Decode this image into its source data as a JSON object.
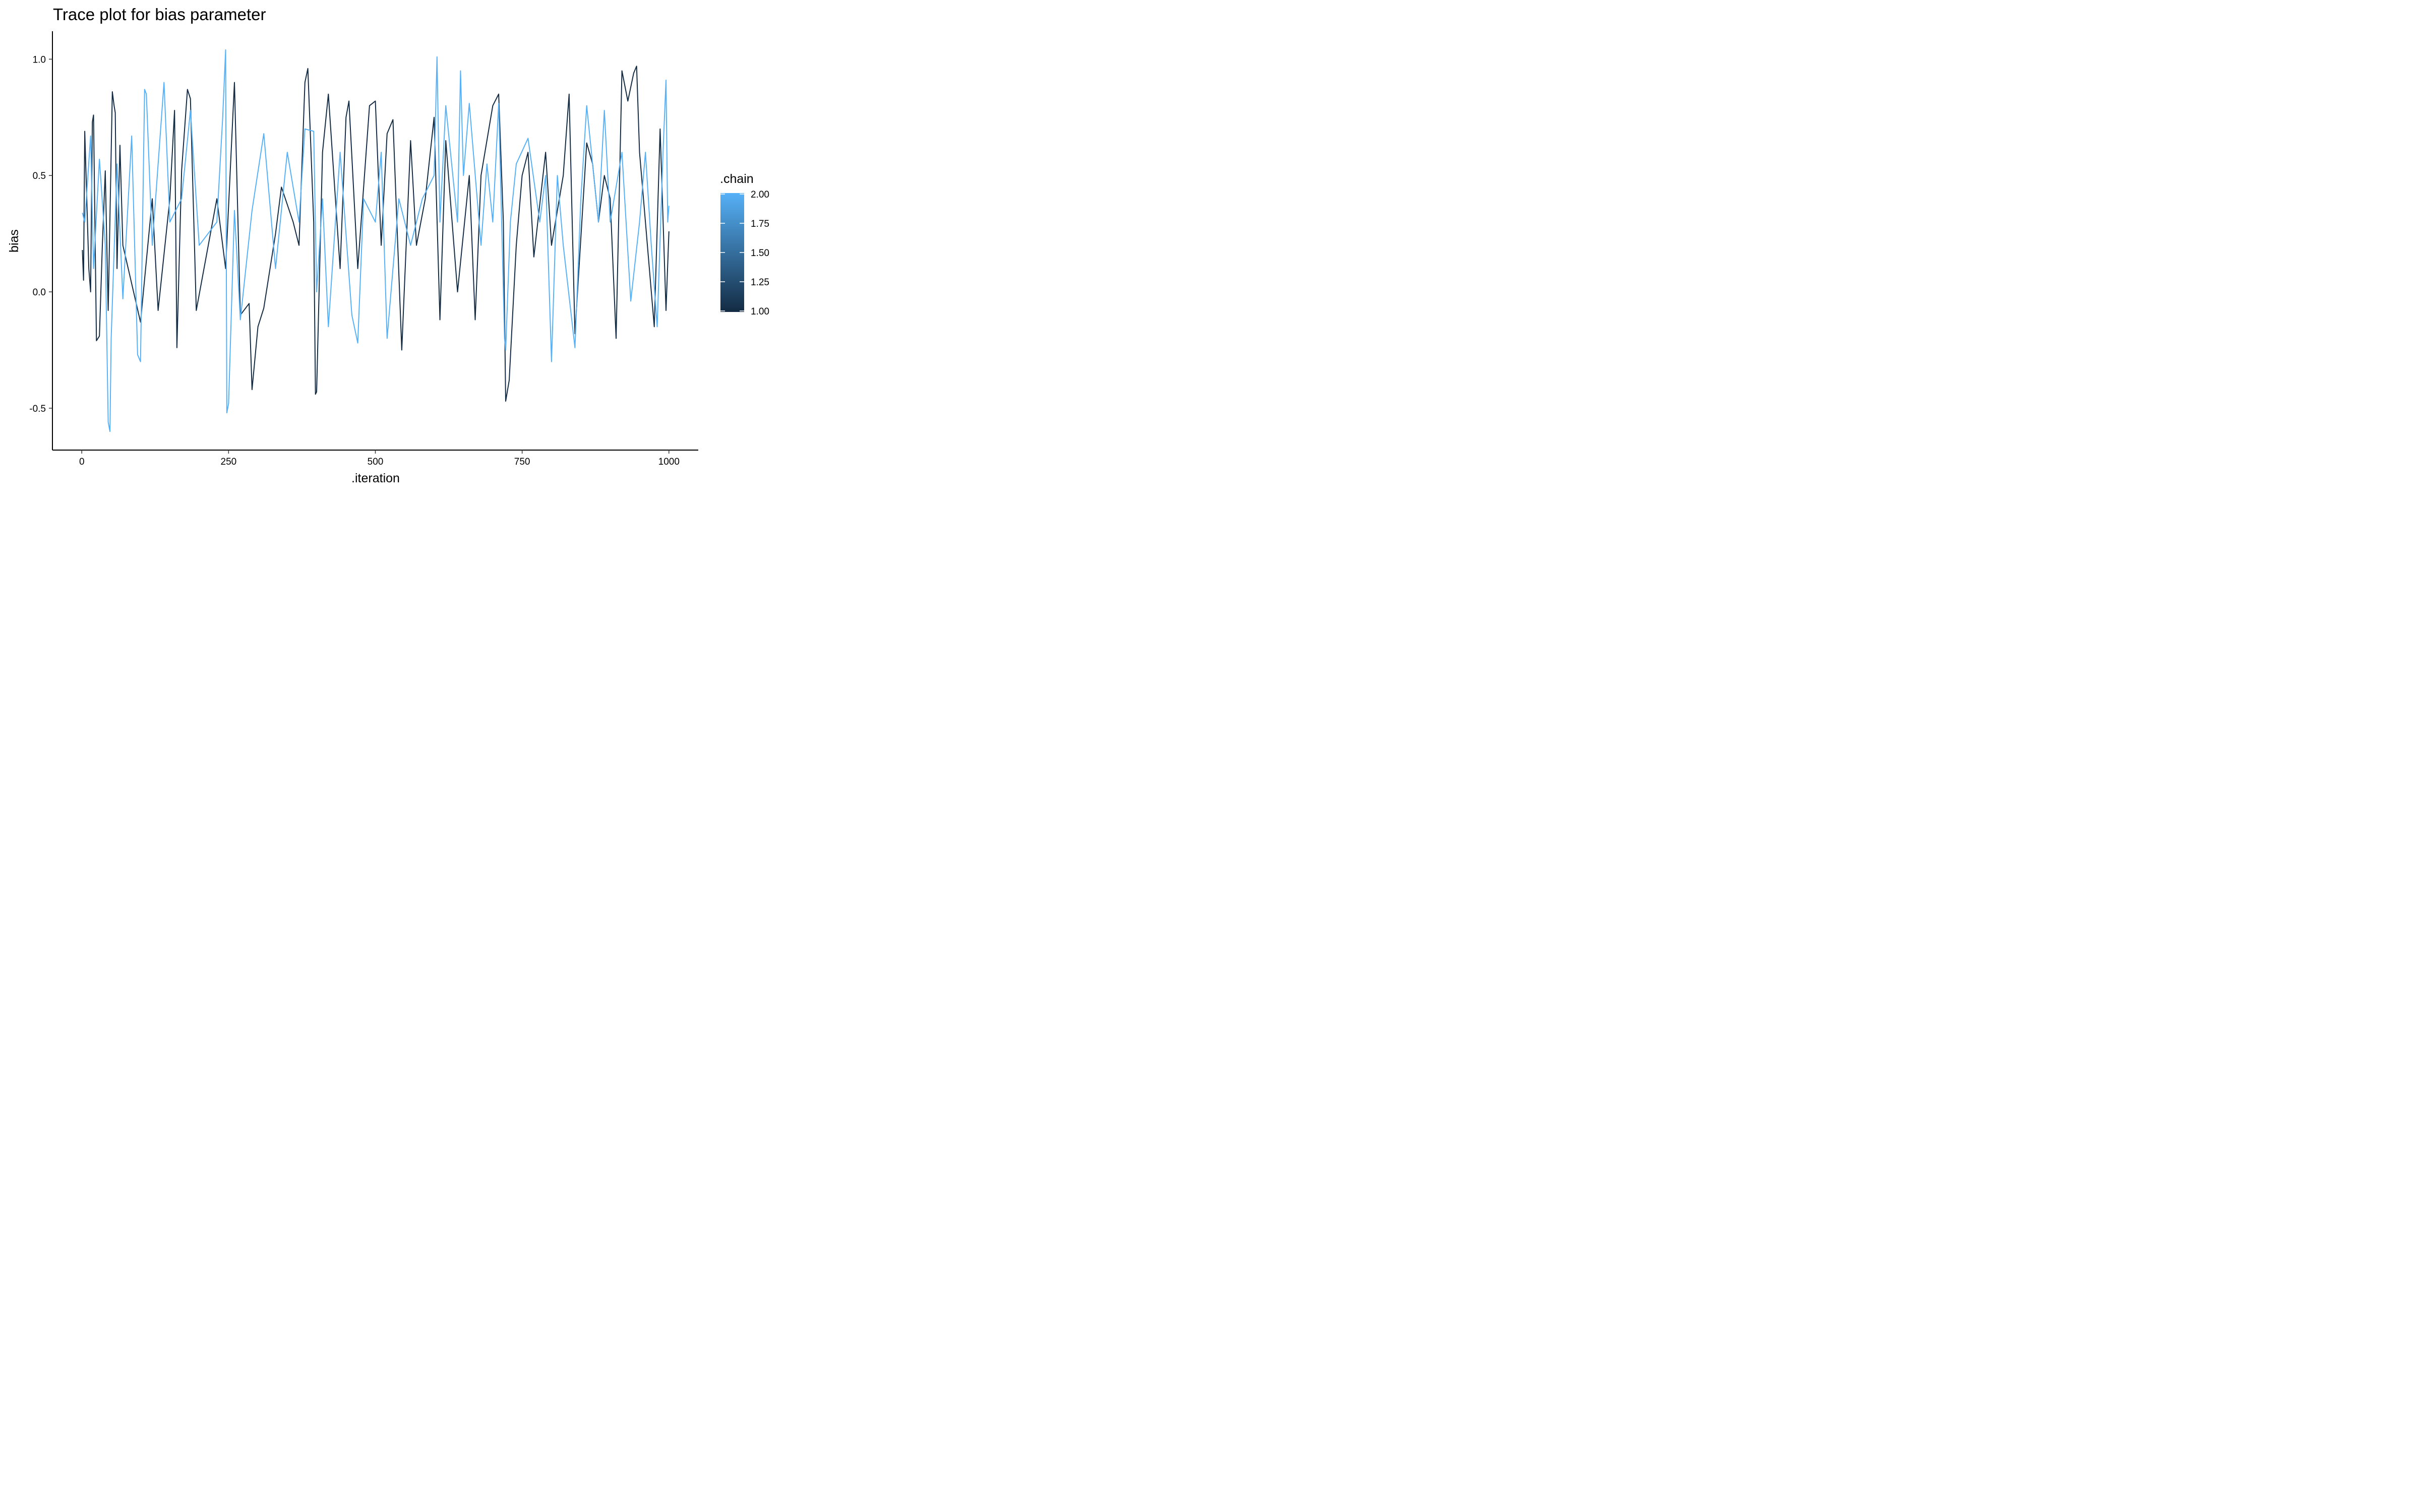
{
  "chart_data": {
    "type": "line",
    "title": "Trace plot for bias parameter",
    "xlabel": ".iteration",
    "ylabel": "bias",
    "xlim": [
      -50,
      1050
    ],
    "ylim": [
      -0.68,
      1.12
    ],
    "x_ticks": [
      0,
      250,
      500,
      750,
      1000
    ],
    "x_tick_labels": [
      "0",
      "250",
      "500",
      "750",
      "1000"
    ],
    "y_ticks": [
      -0.5,
      0.0,
      0.5,
      1.0
    ],
    "y_tick_labels": [
      "-0.5",
      "0.0",
      "0.5",
      "1.0"
    ],
    "grid": false,
    "legend": {
      "title": ".chain",
      "type": "colorbar",
      "placement": "right",
      "range": [
        1.0,
        2.0
      ],
      "ticks": [
        1.0,
        1.25,
        1.5,
        1.75,
        2.0
      ],
      "tick_labels": [
        "1.00",
        "1.25",
        "1.50",
        "1.75",
        "2.00"
      ],
      "color_low": "#132B43",
      "color_high": "#56B1F7"
    },
    "n_iterations": 1000,
    "series": [
      {
        "chain": 1,
        "color": "#132B43",
        "keypoints": [
          [
            1,
            0.18
          ],
          [
            3,
            0.05
          ],
          [
            5,
            0.69
          ],
          [
            12,
            0.1
          ],
          [
            15,
            0.0
          ],
          [
            18,
            0.73
          ],
          [
            20,
            0.76
          ],
          [
            25,
            -0.21
          ],
          [
            30,
            -0.19
          ],
          [
            35,
            0.2
          ],
          [
            40,
            0.52
          ],
          [
            45,
            -0.08
          ],
          [
            52,
            0.86
          ],
          [
            55,
            0.8
          ],
          [
            57,
            0.77
          ],
          [
            60,
            0.1
          ],
          [
            65,
            0.63
          ],
          [
            70,
            0.2
          ],
          [
            100,
            -0.13
          ],
          [
            120,
            0.4
          ],
          [
            130,
            -0.08
          ],
          [
            150,
            0.4
          ],
          [
            158,
            0.78
          ],
          [
            162,
            -0.24
          ],
          [
            170,
            0.52
          ],
          [
            180,
            0.87
          ],
          [
            185,
            0.83
          ],
          [
            195,
            -0.08
          ],
          [
            230,
            0.4
          ],
          [
            245,
            0.1
          ],
          [
            260,
            0.9
          ],
          [
            270,
            -0.1
          ],
          [
            285,
            -0.05
          ],
          [
            290,
            -0.42
          ],
          [
            300,
            -0.15
          ],
          [
            310,
            -0.07
          ],
          [
            330,
            0.25
          ],
          [
            340,
            0.45
          ],
          [
            360,
            0.3
          ],
          [
            370,
            0.2
          ],
          [
            380,
            0.9
          ],
          [
            385,
            0.96
          ],
          [
            395,
            0.3
          ],
          [
            398,
            -0.44
          ],
          [
            400,
            -0.43
          ],
          [
            410,
            0.6
          ],
          [
            420,
            0.85
          ],
          [
            440,
            0.1
          ],
          [
            450,
            0.75
          ],
          [
            455,
            0.82
          ],
          [
            470,
            0.1
          ],
          [
            490,
            0.8
          ],
          [
            500,
            0.82
          ],
          [
            510,
            0.2
          ],
          [
            520,
            0.68
          ],
          [
            530,
            0.74
          ],
          [
            545,
            -0.25
          ],
          [
            560,
            0.65
          ],
          [
            570,
            0.2
          ],
          [
            585,
            0.4
          ],
          [
            600,
            0.75
          ],
          [
            610,
            -0.12
          ],
          [
            620,
            0.65
          ],
          [
            640,
            0.0
          ],
          [
            660,
            0.5
          ],
          [
            670,
            -0.12
          ],
          [
            680,
            0.5
          ],
          [
            700,
            0.8
          ],
          [
            710,
            0.85
          ],
          [
            718,
            0.3
          ],
          [
            722,
            -0.47
          ],
          [
            728,
            -0.38
          ],
          [
            740,
            0.2
          ],
          [
            750,
            0.5
          ],
          [
            760,
            0.6
          ],
          [
            770,
            0.15
          ],
          [
            790,
            0.6
          ],
          [
            800,
            0.2
          ],
          [
            820,
            0.5
          ],
          [
            830,
            0.85
          ],
          [
            840,
            -0.18
          ],
          [
            860,
            0.64
          ],
          [
            870,
            0.55
          ],
          [
            880,
            0.3
          ],
          [
            890,
            0.5
          ],
          [
            900,
            0.4
          ],
          [
            910,
            -0.2
          ],
          [
            920,
            0.95
          ],
          [
            930,
            0.82
          ],
          [
            940,
            0.94
          ],
          [
            945,
            0.97
          ],
          [
            950,
            0.6
          ],
          [
            960,
            0.3
          ],
          [
            975,
            -0.15
          ],
          [
            985,
            0.7
          ],
          [
            995,
            -0.08
          ],
          [
            1000,
            0.26
          ]
        ]
      },
      {
        "chain": 2,
        "color": "#56B1F7",
        "keypoints": [
          [
            1,
            0.34
          ],
          [
            5,
            0.3
          ],
          [
            15,
            0.67
          ],
          [
            20,
            0.1
          ],
          [
            30,
            0.57
          ],
          [
            40,
            0.2
          ],
          [
            45,
            -0.56
          ],
          [
            48,
            -0.6
          ],
          [
            50,
            -0.2
          ],
          [
            60,
            0.55
          ],
          [
            70,
            -0.03
          ],
          [
            85,
            0.67
          ],
          [
            95,
            -0.27
          ],
          [
            100,
            -0.3
          ],
          [
            107,
            0.87
          ],
          [
            110,
            0.85
          ],
          [
            120,
            0.2
          ],
          [
            140,
            0.9
          ],
          [
            150,
            0.3
          ],
          [
            170,
            0.4
          ],
          [
            185,
            0.78
          ],
          [
            200,
            0.2
          ],
          [
            230,
            0.3
          ],
          [
            240,
            0.75
          ],
          [
            245,
            1.04
          ],
          [
            247,
            -0.52
          ],
          [
            250,
            -0.48
          ],
          [
            260,
            0.35
          ],
          [
            270,
            -0.12
          ],
          [
            290,
            0.35
          ],
          [
            310,
            0.68
          ],
          [
            330,
            0.1
          ],
          [
            350,
            0.6
          ],
          [
            370,
            0.3
          ],
          [
            380,
            0.7
          ],
          [
            395,
            0.69
          ],
          [
            400,
            0.0
          ],
          [
            410,
            0.4
          ],
          [
            420,
            -0.15
          ],
          [
            440,
            0.6
          ],
          [
            460,
            -0.1
          ],
          [
            470,
            -0.22
          ],
          [
            480,
            0.4
          ],
          [
            500,
            0.3
          ],
          [
            510,
            0.6
          ],
          [
            520,
            -0.2
          ],
          [
            540,
            0.4
          ],
          [
            560,
            0.2
          ],
          [
            580,
            0.4
          ],
          [
            600,
            0.5
          ],
          [
            605,
            1.01
          ],
          [
            610,
            0.3
          ],
          [
            620,
            0.8
          ],
          [
            640,
            0.3
          ],
          [
            645,
            0.95
          ],
          [
            650,
            0.5
          ],
          [
            660,
            0.81
          ],
          [
            680,
            0.2
          ],
          [
            690,
            0.55
          ],
          [
            700,
            0.3
          ],
          [
            710,
            0.81
          ],
          [
            720,
            -0.2
          ],
          [
            722,
            -0.25
          ],
          [
            730,
            0.3
          ],
          [
            740,
            0.55
          ],
          [
            760,
            0.66
          ],
          [
            780,
            0.3
          ],
          [
            790,
            0.5
          ],
          [
            800,
            -0.3
          ],
          [
            810,
            0.5
          ],
          [
            820,
            0.2
          ],
          [
            840,
            -0.24
          ],
          [
            850,
            0.4
          ],
          [
            860,
            0.8
          ],
          [
            880,
            0.3
          ],
          [
            890,
            0.78
          ],
          [
            900,
            0.3
          ],
          [
            920,
            0.6
          ],
          [
            935,
            -0.04
          ],
          [
            950,
            0.3
          ],
          [
            960,
            0.6
          ],
          [
            970,
            0.2
          ],
          [
            980,
            -0.15
          ],
          [
            990,
            0.6
          ],
          [
            995,
            0.91
          ],
          [
            998,
            0.3
          ],
          [
            1000,
            0.37
          ]
        ]
      }
    ]
  }
}
